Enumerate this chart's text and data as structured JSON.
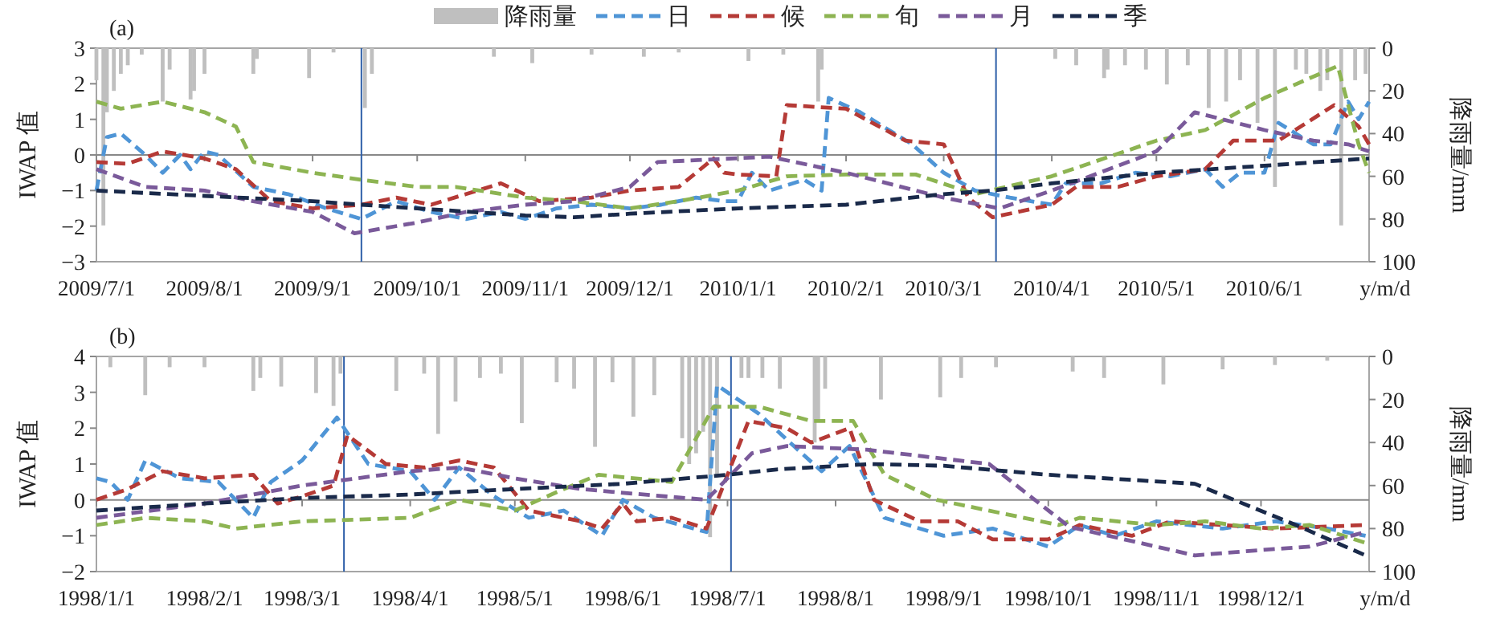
{
  "chart_data": [
    {
      "type": "line",
      "title": "(a)",
      "ylabel": "IWAP 值",
      "y2label": "降雨量/mm",
      "xlabel": "y/m/d",
      "legend": "top",
      "line_style": "dashed",
      "xlim": [
        "2009-07-01",
        "2010-07-01"
      ],
      "ylim": [
        -3,
        3
      ],
      "yticks": [
        -3,
        -2,
        -1,
        0,
        1,
        2,
        3
      ],
      "y2lim": [
        100,
        0
      ],
      "y2ticks": [
        0,
        20,
        40,
        60,
        80,
        100
      ],
      "xticks": [
        {
          "value": "2009-07-01",
          "label": "2009/7/1"
        },
        {
          "value": "2009-08-01",
          "label": "2009/8/1"
        },
        {
          "value": "2009-09-01",
          "label": "2009/9/1"
        },
        {
          "value": "2009-10-01",
          "label": "2009/10/1"
        },
        {
          "value": "2009-11-01",
          "label": "2009/11/1"
        },
        {
          "value": "2009-12-01",
          "label": "2009/12/1"
        },
        {
          "value": "2010-01-01",
          "label": "2010/1/1"
        },
        {
          "value": "2010-02-01",
          "label": "2010/2/1"
        },
        {
          "value": "2010-03-01",
          "label": "2010/3/1"
        },
        {
          "value": "2010-04-01",
          "label": "2010/4/1"
        },
        {
          "value": "2010-05-01",
          "label": "2010/5/1"
        },
        {
          "value": "2010-06-01",
          "label": "2010/6/1"
        }
      ],
      "ref_lines": [
        {
          "axis": "x",
          "value": "2009-09-15",
          "color": "#2e5fa8"
        },
        {
          "axis": "x",
          "value": "2010-03-16",
          "color": "#2e5fa8"
        }
      ],
      "series": [
        {
          "name": "降雨量",
          "type": "bar",
          "axis": "y2",
          "color": "#bfbfbf",
          "x": [
            "2009-07-01",
            "2009-07-03",
            "2009-07-04",
            "2009-07-06",
            "2009-07-08",
            "2009-07-10",
            "2009-07-14",
            "2009-07-20",
            "2009-07-22",
            "2009-07-28",
            "2009-07-29",
            "2009-08-01",
            "2009-08-15",
            "2009-08-16",
            "2009-08-31",
            "2009-09-07",
            "2009-09-16",
            "2009-09-18",
            "2009-10-23",
            "2009-11-03",
            "2009-11-20",
            "2009-12-05",
            "2009-12-15",
            "2010-01-04",
            "2010-01-14",
            "2010-01-24",
            "2010-01-25",
            "2010-04-02",
            "2010-04-08",
            "2010-04-16",
            "2010-04-17",
            "2010-04-22",
            "2010-04-28",
            "2010-05-04",
            "2010-05-10",
            "2010-05-16",
            "2010-05-21",
            "2010-05-25",
            "2010-05-30",
            "2010-06-04",
            "2010-06-10",
            "2010-06-13",
            "2010-06-17",
            "2010-06-19",
            "2010-06-23",
            "2010-06-27",
            "2010-06-30"
          ],
          "values": [
            15,
            83,
            30,
            20,
            12,
            8,
            3,
            25,
            10,
            24,
            20,
            12,
            12,
            5,
            14,
            2,
            28,
            12,
            4,
            7,
            3,
            4,
            2,
            6,
            3,
            25,
            10,
            5,
            8,
            14,
            10,
            8,
            10,
            17,
            8,
            28,
            25,
            15,
            35,
            65,
            10,
            12,
            20,
            15,
            83,
            15,
            12
          ]
        },
        {
          "name": "日",
          "color": "#4f95d6",
          "x": [
            "2009-07-01",
            "2009-07-04",
            "2009-07-08",
            "2009-07-15",
            "2009-07-20",
            "2009-07-25",
            "2009-07-28",
            "2009-08-01",
            "2009-08-05",
            "2009-08-15",
            "2009-08-25",
            "2009-09-05",
            "2009-09-15",
            "2009-09-25",
            "2009-10-05",
            "2009-10-15",
            "2009-10-25",
            "2009-11-01",
            "2009-11-10",
            "2009-11-20",
            "2009-12-01",
            "2009-12-10",
            "2009-12-20",
            "2009-12-28",
            "2010-01-01",
            "2010-01-05",
            "2010-01-10",
            "2010-01-20",
            "2010-01-25",
            "2010-01-27",
            "2010-02-05",
            "2010-02-20",
            "2010-03-01",
            "2010-03-10",
            "2010-03-20",
            "2010-04-01",
            "2010-04-05",
            "2010-04-15",
            "2010-04-25",
            "2010-05-05",
            "2010-05-15",
            "2010-05-20",
            "2010-05-25",
            "2010-06-01",
            "2010-06-05",
            "2010-06-15",
            "2010-06-20",
            "2010-06-25",
            "2010-06-28",
            "2010-07-01"
          ],
          "values": [
            -1.0,
            0.5,
            0.6,
            0.0,
            -0.5,
            0.0,
            -0.4,
            0.1,
            0.0,
            -0.9,
            -1.1,
            -1.5,
            -1.8,
            -1.3,
            -1.6,
            -1.8,
            -1.6,
            -1.8,
            -1.5,
            -1.4,
            -1.5,
            -1.4,
            -1.2,
            -1.3,
            -1.3,
            -0.5,
            -1.0,
            -0.7,
            -1.0,
            1.6,
            1.2,
            0.3,
            -0.5,
            -1.0,
            -1.2,
            -1.4,
            -0.8,
            -0.8,
            -0.5,
            -0.6,
            -0.4,
            -0.9,
            -0.5,
            -0.5,
            0.9,
            0.3,
            0.3,
            1.5,
            1.0,
            1.5
          ]
        },
        {
          "name": "候",
          "color": "#b53a36",
          "x": [
            "2009-07-01",
            "2009-07-10",
            "2009-07-20",
            "2009-08-01",
            "2009-08-10",
            "2009-08-20",
            "2009-09-01",
            "2009-09-15",
            "2009-09-25",
            "2009-10-05",
            "2009-10-15",
            "2009-10-25",
            "2009-11-05",
            "2009-11-20",
            "2009-12-01",
            "2009-12-15",
            "2009-12-25",
            "2009-12-28",
            "2010-01-01",
            "2010-01-12",
            "2010-01-15",
            "2010-02-01",
            "2010-02-18",
            "2010-03-01",
            "2010-03-08",
            "2010-03-15",
            "2010-04-01",
            "2010-04-08",
            "2010-04-20",
            "2010-05-01",
            "2010-05-15",
            "2010-05-23",
            "2010-06-05",
            "2010-06-21",
            "2010-06-28",
            "2010-07-01"
          ],
          "values": [
            -0.2,
            -0.25,
            0.1,
            -0.1,
            -0.4,
            -1.3,
            -1.5,
            -1.4,
            -1.2,
            -1.4,
            -1.1,
            -0.8,
            -1.3,
            -1.2,
            -1.0,
            -0.9,
            -0.1,
            -0.5,
            -0.55,
            -0.6,
            1.4,
            1.3,
            0.4,
            0.3,
            -1.2,
            -1.75,
            -1.4,
            -0.9,
            -0.9,
            -0.6,
            -0.4,
            0.4,
            0.4,
            1.4,
            0.8,
            0.3
          ]
        },
        {
          "name": "旬",
          "color": "#8db452",
          "x": [
            "2009-07-01",
            "2009-07-08",
            "2009-07-20",
            "2009-08-01",
            "2009-08-10",
            "2009-08-15",
            "2009-09-01",
            "2009-09-15",
            "2009-10-01",
            "2009-10-12",
            "2009-11-01",
            "2009-11-15",
            "2009-12-01",
            "2009-12-15",
            "2010-01-01",
            "2010-01-15",
            "2010-02-01",
            "2010-02-21",
            "2010-03-10",
            "2010-04-01",
            "2010-05-01",
            "2010-05-15",
            "2010-06-01",
            "2010-06-22",
            "2010-06-28",
            "2010-07-01"
          ],
          "values": [
            1.5,
            1.3,
            1.5,
            1.2,
            0.8,
            -0.2,
            -0.5,
            -0.7,
            -0.9,
            -0.9,
            -1.2,
            -1.3,
            -1.5,
            -1.3,
            -1.0,
            -0.6,
            -0.55,
            -0.55,
            -1.1,
            -0.6,
            0.4,
            0.7,
            1.6,
            2.5,
            0.3,
            -0.5
          ]
        },
        {
          "name": "月",
          "color": "#7a5a9a",
          "x": [
            "2009-07-01",
            "2009-07-15",
            "2009-08-01",
            "2009-08-15",
            "2009-09-01",
            "2009-09-13",
            "2009-10-01",
            "2009-10-15",
            "2009-11-01",
            "2009-11-15",
            "2009-12-01",
            "2009-12-09",
            "2010-01-10",
            "2010-02-01",
            "2010-03-01",
            "2010-03-17",
            "2010-04-01",
            "2010-05-01",
            "2010-05-12",
            "2010-06-01",
            "2010-06-15",
            "2010-06-25",
            "2010-07-01"
          ],
          "values": [
            -0.4,
            -0.9,
            -1.0,
            -1.3,
            -1.6,
            -2.2,
            -1.9,
            -1.6,
            -1.4,
            -1.3,
            -0.9,
            -0.2,
            -0.05,
            -0.5,
            -1.2,
            -1.5,
            -1.0,
            0.1,
            1.2,
            0.7,
            0.4,
            0.3,
            0.1
          ]
        },
        {
          "name": "季",
          "color": "#1a2a4a",
          "x": [
            "2009-07-01",
            "2009-08-01",
            "2009-09-01",
            "2009-09-15",
            "2009-10-01",
            "2009-11-01",
            "2009-11-15",
            "2009-12-01",
            "2010-01-01",
            "2010-02-01",
            "2010-03-01",
            "2010-03-15",
            "2010-04-01",
            "2010-05-01",
            "2010-06-01",
            "2010-07-01"
          ],
          "values": [
            -1.0,
            -1.15,
            -1.3,
            -1.4,
            -1.5,
            -1.7,
            -1.75,
            -1.65,
            -1.5,
            -1.4,
            -1.1,
            -1.0,
            -0.8,
            -0.5,
            -0.3,
            -0.1
          ]
        }
      ]
    },
    {
      "type": "line",
      "title": "(b)",
      "ylabel": "IWAP 值",
      "y2label": "降雨量/mm",
      "xlabel": "y/m/d",
      "line_style": "dashed",
      "xlim": [
        "1998-01-01",
        "1999-01-01"
      ],
      "ylim": [
        -2,
        4
      ],
      "yticks": [
        -2,
        -1,
        0,
        1,
        2,
        3,
        4
      ],
      "y2lim": [
        100,
        0
      ],
      "y2ticks": [
        0,
        20,
        40,
        60,
        80,
        100
      ],
      "xticks": [
        {
          "value": "1998-01-01",
          "label": "1998/1/1"
        },
        {
          "value": "1998-02-01",
          "label": "1998/2/1"
        },
        {
          "value": "1998-03-01",
          "label": "1998/3/1"
        },
        {
          "value": "1998-04-01",
          "label": "1998/4/1"
        },
        {
          "value": "1998-05-01",
          "label": "1998/5/1"
        },
        {
          "value": "1998-06-01",
          "label": "1998/6/1"
        },
        {
          "value": "1998-07-01",
          "label": "1998/7/1"
        },
        {
          "value": "1998-08-01",
          "label": "1998/8/1"
        },
        {
          "value": "1998-09-01",
          "label": "1998/9/1"
        },
        {
          "value": "1998-10-01",
          "label": "1998/10/1"
        },
        {
          "value": "1998-11-01",
          "label": "1998/11/1"
        },
        {
          "value": "1998-12-01",
          "label": "1998/12/1"
        }
      ],
      "ref_lines": [
        {
          "axis": "x",
          "value": "1998-03-13",
          "color": "#2e5fa8"
        },
        {
          "axis": "x",
          "value": "1998-07-02",
          "color": "#2e5fa8"
        }
      ],
      "series": [
        {
          "type": "bar",
          "axis": "y2",
          "color": "#bfbfbf",
          "x": [
            "1998-01-05",
            "1998-01-15",
            "1998-01-22",
            "1998-02-01",
            "1998-02-15",
            "1998-02-17",
            "1998-02-23",
            "1998-03-05",
            "1998-03-10",
            "1998-03-12",
            "1998-03-28",
            "1998-04-05",
            "1998-04-09",
            "1998-04-14",
            "1998-04-21",
            "1998-04-27",
            "1998-05-03",
            "1998-05-13",
            "1998-05-18",
            "1998-05-24",
            "1998-05-29",
            "1998-06-04",
            "1998-06-10",
            "1998-06-18",
            "1998-06-20",
            "1998-06-22",
            "1998-06-24",
            "1998-06-26",
            "1998-06-28",
            "1998-07-05",
            "1998-07-07",
            "1998-07-11",
            "1998-07-16",
            "1998-07-26",
            "1998-07-27",
            "1998-07-29",
            "1998-08-14",
            "1998-08-31",
            "1998-09-06",
            "1998-09-16",
            "1998-10-08",
            "1998-10-17",
            "1998-11-03",
            "1998-11-20",
            "1998-12-05",
            "1998-12-20"
          ],
          "values": [
            5,
            18,
            5,
            5,
            16,
            10,
            14,
            17,
            23,
            8,
            16,
            8,
            36,
            21,
            10,
            8,
            31,
            12,
            15,
            42,
            12,
            28,
            18,
            38,
            50,
            45,
            35,
            84,
            55,
            10,
            10,
            10,
            15,
            40,
            30,
            15,
            20,
            19,
            10,
            5,
            7,
            10,
            13,
            6,
            4,
            2
          ]
        },
        {
          "color": "#4f95d6",
          "x": [
            "1998-01-01",
            "1998-01-05",
            "1998-01-10",
            "1998-01-15",
            "1998-01-25",
            "1998-02-05",
            "1998-02-15",
            "1998-02-20",
            "1998-03-01",
            "1998-03-11",
            "1998-03-20",
            "1998-04-01",
            "1998-04-08",
            "1998-04-15",
            "1998-04-25",
            "1998-05-05",
            "1998-05-15",
            "1998-05-26",
            "1998-06-01",
            "1998-06-10",
            "1998-06-25",
            "1998-06-28",
            "1998-07-10",
            "1998-07-20",
            "1998-07-28",
            "1998-08-05",
            "1998-08-15",
            "1998-09-01",
            "1998-09-15",
            "1998-10-01",
            "1998-10-10",
            "1998-10-20",
            "1998-11-01",
            "1998-11-20",
            "1998-12-05",
            "1998-12-20",
            "1998-12-31"
          ],
          "values": [
            0.6,
            0.5,
            0.0,
            1.1,
            0.6,
            0.5,
            -0.5,
            0.5,
            1.1,
            2.3,
            1.0,
            0.8,
            0.0,
            0.9,
            0.1,
            -0.5,
            -0.3,
            -1.0,
            0.0,
            -0.5,
            -0.9,
            3.2,
            2.4,
            1.5,
            0.8,
            1.5,
            -0.5,
            -1.0,
            -0.8,
            -1.3,
            -0.7,
            -1.0,
            -0.6,
            -0.8,
            -0.6,
            -0.8,
            -1.0
          ]
        },
        {
          "color": "#b53a36",
          "x": [
            "1998-01-01",
            "1998-01-10",
            "1998-01-20",
            "1998-02-01",
            "1998-02-15",
            "1998-02-22",
            "1998-03-01",
            "1998-03-10",
            "1998-03-14",
            "1998-03-25",
            "1998-04-05",
            "1998-04-15",
            "1998-04-25",
            "1998-05-05",
            "1998-05-20",
            "1998-05-26",
            "1998-06-01",
            "1998-06-05",
            "1998-06-15",
            "1998-06-25",
            "1998-07-07",
            "1998-07-18",
            "1998-07-25",
            "1998-08-05",
            "1998-08-12",
            "1998-08-25",
            "1998-09-05",
            "1998-09-15",
            "1998-10-01",
            "1998-10-10",
            "1998-10-25",
            "1998-11-05",
            "1998-11-20",
            "1998-12-05",
            "1998-12-31"
          ],
          "values": [
            0.0,
            0.3,
            0.8,
            0.6,
            0.7,
            -0.1,
            0.1,
            0.4,
            1.8,
            1.0,
            0.9,
            1.1,
            0.9,
            -0.3,
            -0.6,
            -0.8,
            -0.1,
            -0.6,
            -0.5,
            -0.8,
            2.2,
            2.0,
            1.6,
            2.0,
            0.0,
            -0.6,
            -0.6,
            -1.1,
            -1.1,
            -0.7,
            -1.0,
            -0.6,
            -0.7,
            -0.8,
            -0.7
          ]
        },
        {
          "color": "#8db452",
          "x": [
            "1998-01-01",
            "1998-01-15",
            "1998-02-01",
            "1998-02-10",
            "1998-03-01",
            "1998-04-01",
            "1998-04-15",
            "1998-05-01",
            "1998-05-15",
            "1998-05-25",
            "1998-06-15",
            "1998-06-27",
            "1998-07-10",
            "1998-07-25",
            "1998-08-06",
            "1998-08-15",
            "1998-08-30",
            "1998-10-04",
            "1998-10-10",
            "1998-11-01",
            "1998-11-15",
            "1998-12-01",
            "1998-12-15",
            "1998-12-31"
          ],
          "values": [
            -0.7,
            -0.5,
            -0.6,
            -0.8,
            -0.6,
            -0.5,
            0.0,
            -0.3,
            0.3,
            0.7,
            0.5,
            2.6,
            2.6,
            2.2,
            2.2,
            0.7,
            0.0,
            -0.7,
            -0.5,
            -0.7,
            -0.6,
            -0.8,
            -0.7,
            -1.2
          ]
        },
        {
          "color": "#7a5a9a",
          "x": [
            "1998-01-01",
            "1998-02-01",
            "1998-03-01",
            "1998-04-01",
            "1998-04-15",
            "1998-05-01",
            "1998-05-20",
            "1998-06-01",
            "1998-06-25",
            "1998-07-08",
            "1998-07-18",
            "1998-08-10",
            "1998-09-14",
            "1998-10-07",
            "1998-11-12",
            "1998-12-01",
            "1998-12-15",
            "1998-12-31"
          ],
          "values": [
            -0.5,
            -0.1,
            0.4,
            0.8,
            0.9,
            0.6,
            0.3,
            0.2,
            0.0,
            1.3,
            1.5,
            1.4,
            1.0,
            -0.75,
            -1.55,
            -1.4,
            -1.3,
            -0.9
          ]
        },
        {
          "color": "#1a2a4a",
          "x": [
            "1998-01-01",
            "1998-02-01",
            "1998-03-01",
            "1998-04-01",
            "1998-05-01",
            "1998-06-01",
            "1998-07-01",
            "1998-07-15",
            "1998-08-11",
            "1998-09-01",
            "1998-10-01",
            "1998-11-12",
            "1998-12-11",
            "1998-12-31"
          ],
          "values": [
            -0.3,
            -0.1,
            0.05,
            0.15,
            0.3,
            0.45,
            0.7,
            0.85,
            1.0,
            0.95,
            0.7,
            0.45,
            -0.7,
            -1.55
          ]
        }
      ]
    }
  ]
}
